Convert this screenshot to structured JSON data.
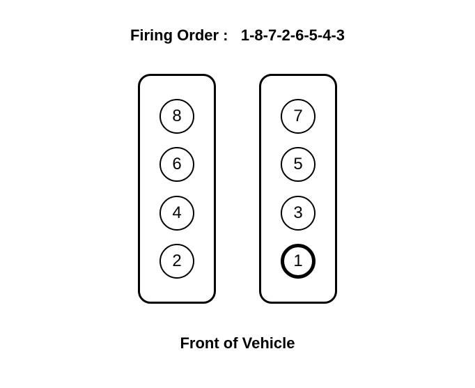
{
  "title": {
    "label": "Firing Order :",
    "sequence": "1-8-7-2-6-5-4-3",
    "fontsize": 22
  },
  "footer": {
    "label": "Front of Vehicle",
    "fontsize": 22
  },
  "layout": {
    "bank_width": 112,
    "bank_height": 330,
    "bank_border_width": 3,
    "bank_border_radius": 18,
    "bank_gap": 62,
    "cylinder_diameter": 50,
    "cylinder_fontsize": 24,
    "normal_stroke": 2,
    "highlight_stroke": 5
  },
  "colors": {
    "background": "#ffffff",
    "stroke": "#000000",
    "text": "#000000"
  },
  "banks": [
    {
      "side": "left",
      "cylinders": [
        {
          "label": "8",
          "highlight": false
        },
        {
          "label": "6",
          "highlight": false
        },
        {
          "label": "4",
          "highlight": false
        },
        {
          "label": "2",
          "highlight": false
        }
      ]
    },
    {
      "side": "right",
      "cylinders": [
        {
          "label": "7",
          "highlight": false
        },
        {
          "label": "5",
          "highlight": false
        },
        {
          "label": "3",
          "highlight": false
        },
        {
          "label": "1",
          "highlight": true
        }
      ]
    }
  ]
}
